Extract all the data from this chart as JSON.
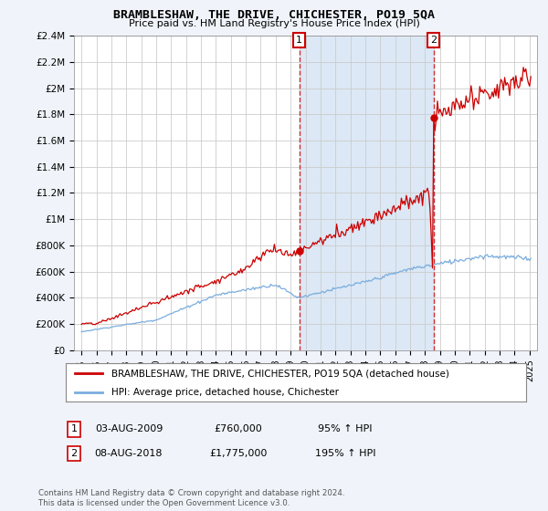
{
  "title": "BRAMBLESHAW, THE DRIVE, CHICHESTER, PO19 5QA",
  "subtitle": "Price paid vs. HM Land Registry's House Price Index (HPI)",
  "ylabel_ticks": [
    "£0",
    "£200K",
    "£400K",
    "£600K",
    "£800K",
    "£1M",
    "£1.2M",
    "£1.4M",
    "£1.6M",
    "£1.8M",
    "£2M",
    "£2.2M",
    "£2.4M"
  ],
  "ytick_values": [
    0,
    200000,
    400000,
    600000,
    800000,
    1000000,
    1200000,
    1400000,
    1600000,
    1800000,
    2000000,
    2200000,
    2400000
  ],
  "sale1_date_num": 2009.58,
  "sale1_price": 760000,
  "sale2_date_num": 2018.58,
  "sale2_price": 1775000,
  "sale1_date_str": "03-AUG-2009",
  "sale1_price_str": "£760,000",
  "sale1_pct": "95% ↑ HPI",
  "sale2_date_str": "08-AUG-2018",
  "sale2_price_str": "£1,775,000",
  "sale2_pct": "195% ↑ HPI",
  "prop_color": "#cc0000",
  "hpi_color": "#7aadde",
  "shade_color": "#dce8f5",
  "background_color": "#f0f4fa",
  "plot_bg_color": "#ffffff",
  "legend_label_prop": "BRAMBLESHAW, THE DRIVE, CHICHESTER, PO19 5QA (detached house)",
  "legend_label_hpi": "HPI: Average price, detached house, Chichester",
  "footer": "Contains HM Land Registry data © Crown copyright and database right 2024.\nThis data is licensed under the Open Government Licence v3.0.",
  "xmin": 1994.5,
  "xmax": 2025.5,
  "ymin": 0,
  "ymax": 2400000
}
